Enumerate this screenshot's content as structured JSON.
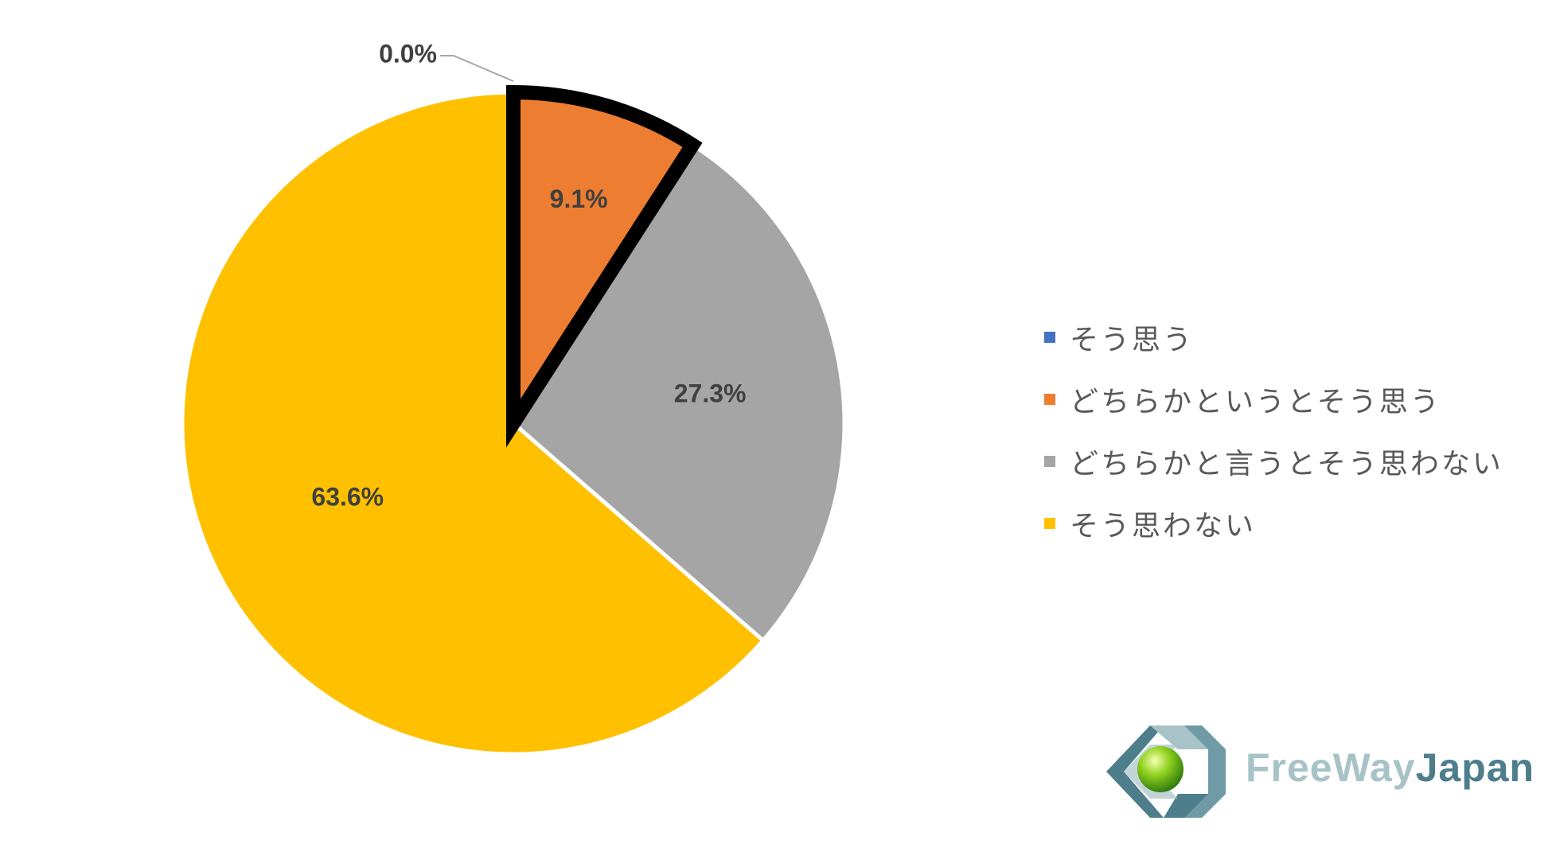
{
  "chart_data": {
    "type": "pie",
    "title": "",
    "start_angle_deg": 0,
    "direction": "clockwise",
    "slices": [
      {
        "label": "そう思う",
        "value": 0.0,
        "value_label": "0.0%",
        "color": "#4472c4",
        "highlighted": false
      },
      {
        "label": "どちらかというとそう思う",
        "value": 9.1,
        "value_label": "9.1%",
        "color": "#ed7d31",
        "highlighted": true
      },
      {
        "label": "どちらかと言うとそう思わない",
        "value": 27.3,
        "value_label": "27.3%",
        "color": "#a5a5a5",
        "highlighted": false
      },
      {
        "label": "そう思わない",
        "value": 63.6,
        "value_label": "63.6%",
        "color": "#ffc000",
        "highlighted": false
      }
    ],
    "legend_position": "right",
    "highlight_outline_color": "#000000"
  },
  "logo": {
    "text_part1": "FreeWay",
    "text_part2": "Japan",
    "color_part1": "#a7c3c8",
    "color_part2": "#4e7d8c"
  }
}
